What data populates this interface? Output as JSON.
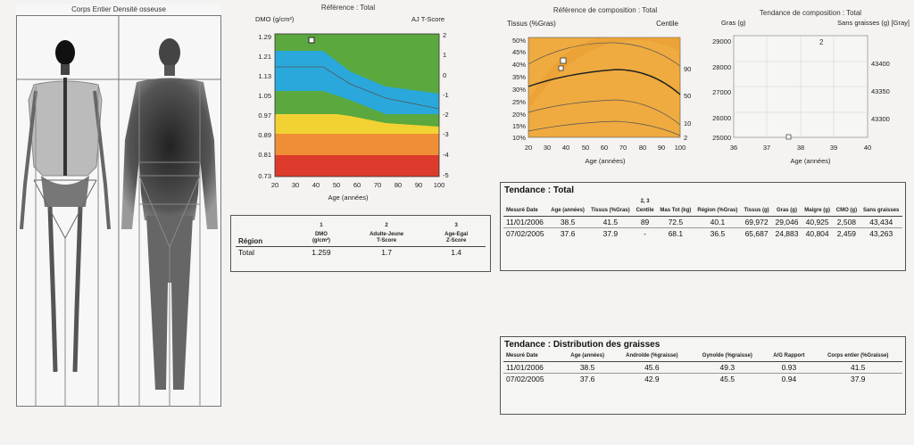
{
  "scan": {
    "title": "Corps Entier Densité osseuse"
  },
  "bmd_chart": {
    "title": "Référence : Total",
    "ylabel": "DMO (g/cm²)",
    "y2label": "AJ T-Score",
    "xlabel": "Age (années)",
    "y_ticks": [
      "1.29",
      "1.21",
      "1.13",
      "1.05",
      "0.97",
      "0.89",
      "0.81",
      "0.73"
    ],
    "y2_ticks": [
      "2",
      "1",
      "0",
      "-1",
      "-2",
      "-3",
      "-4",
      "-5"
    ],
    "x_ticks": [
      "20",
      "30",
      "40",
      "50",
      "60",
      "70",
      "80",
      "90",
      "100"
    ],
    "colors": {
      "green": "#5aa83e",
      "blue": "#2aa8dc",
      "yellow": "#f2d232",
      "orange": "#ef8e35",
      "red": "#dc3a2a"
    }
  },
  "comp_chart": {
    "title": "Référence de composition : Total",
    "ylabel": "Tissus (%Gras)",
    "y2label": "Centile",
    "xlabel": "Age (années)",
    "y_ticks": [
      "50%",
      "45%",
      "40%",
      "35%",
      "30%",
      "25%",
      "20%",
      "15%",
      "10%"
    ],
    "y2_ticks": [
      "90",
      "50",
      "10",
      "2"
    ],
    "x_ticks": [
      "20",
      "30",
      "40",
      "50",
      "60",
      "70",
      "80",
      "90",
      "100"
    ],
    "fill": "#efab3f"
  },
  "trend_chart": {
    "title": "Tendance de composition : Total",
    "ylabel": "Gras (g)",
    "y2label": "Sans graisses (g) [Gray]",
    "xlabel": "Age (années)",
    "y_ticks": [
      "29000",
      "28000",
      "27000",
      "26000",
      "25000"
    ],
    "y2_ticks": [
      "43400",
      "43350",
      "43300"
    ],
    "x_ticks": [
      "36",
      "37",
      "38",
      "39",
      "40"
    ]
  },
  "region_table": {
    "headers": {
      "region": "Région",
      "dmo": "DMO",
      "dmo_unit": "(g/cm²)",
      "dmo_sup": "1",
      "adult": "Adulte-Jeune",
      "adult_sub": "T-Score",
      "adult_sup": "2",
      "age": "Age-Egal",
      "age_sub": "Z-Score",
      "age_sup": "3"
    },
    "rows": [
      {
        "region": "Total",
        "dmo": "1.259",
        "t": "1.7",
        "z": "1.4"
      }
    ]
  },
  "trend_table": {
    "title": "Tendance : Total",
    "headers": {
      "date": "Mesuré Date",
      "age": "Age (années)",
      "tissus": "Tissus (%Gras)",
      "centile": "Centile",
      "centile_sup": "2, 3",
      "mastot": "Mas Tot (kg)",
      "region": "Région (%Gras)",
      "tissus_g": "Tissus (g)",
      "gras": "Gras (g)",
      "maigre": "Maigre (g)",
      "cmo": "CMO (g)",
      "sans": "Sans graisses"
    },
    "rows": [
      {
        "date": "11/01/2006",
        "age": "38.5",
        "tissus": "41.5",
        "centile": "89",
        "mastot": "72.5",
        "region": "40.1",
        "tissus_g": "69,972",
        "gras": "29,046",
        "maigre": "40,925",
        "cmo": "2,508",
        "sans": "43,434"
      },
      {
        "date": "07/02/2005",
        "age": "37.6",
        "tissus": "37.9",
        "centile": "-",
        "mastot": "68.1",
        "region": "36.5",
        "tissus_g": "65,687",
        "gras": "24,883",
        "maigre": "40,804",
        "cmo": "2,459",
        "sans": "43,263"
      }
    ]
  },
  "dist_table": {
    "title": "Tendance : Distribution des graisses",
    "headers": {
      "date": "Mesuré Date",
      "age": "Age (années)",
      "android": "Androïde (%graisse)",
      "gynoid": "Gynoïde (%graisse)",
      "ag": "A/G Rapport",
      "corps": "Corps entier (%Graisse)"
    },
    "rows": [
      {
        "date": "11/01/2006",
        "age": "38.5",
        "android": "45.6",
        "gynoid": "49.3",
        "ag": "0.93",
        "corps": "41.5"
      },
      {
        "date": "07/02/2005",
        "age": "37.6",
        "android": "42.9",
        "gynoid": "45.5",
        "ag": "0.94",
        "corps": "37.9"
      }
    ]
  }
}
